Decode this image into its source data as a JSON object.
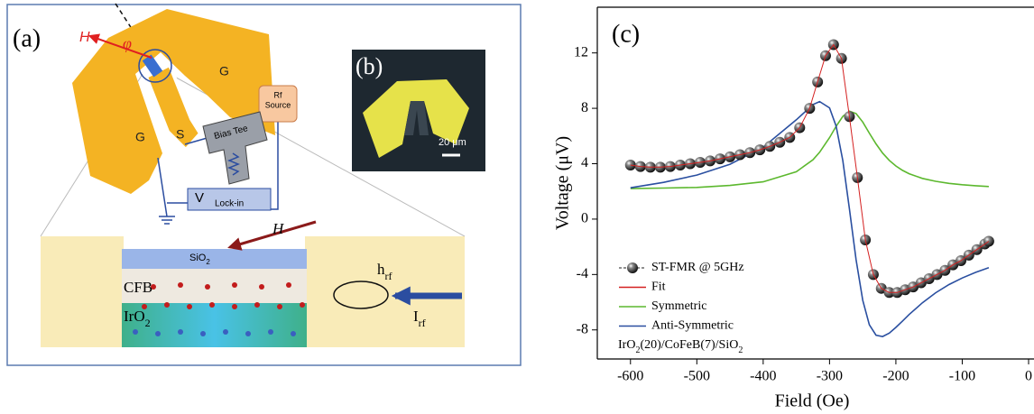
{
  "chart_data": {
    "type": "line",
    "panel_label": "(c)",
    "xlabel": "Field (Oe)",
    "ylabel": "Voltage (μV)",
    "xlim": [
      -650,
      0
    ],
    "ylim": [
      -10.1,
      15.3
    ],
    "xticks": [
      -600,
      -500,
      -400,
      -300,
      -200,
      -100,
      0
    ],
    "yticks": [
      -8,
      -4,
      0,
      4,
      8,
      12
    ],
    "series": [
      {
        "name": "ST-FMR @ 5GHz",
        "color": "#222222",
        "style": "markers",
        "x": [
          -600,
          -585,
          -570,
          -555,
          -540,
          -525,
          -510,
          -495,
          -480,
          -465,
          -450,
          -435,
          -420,
          -405,
          -390,
          -375,
          -360,
          -345,
          -330,
          -318,
          -306,
          -294,
          -282,
          -270,
          -258,
          -246,
          -234,
          -222,
          -210,
          -198,
          -186,
          -174,
          -162,
          -150,
          -138,
          -126,
          -114,
          -102,
          -90,
          -78,
          -66,
          -60
        ],
        "values": [
          3.9,
          3.8,
          3.75,
          3.75,
          3.8,
          3.9,
          4.0,
          4.1,
          4.2,
          4.35,
          4.5,
          4.65,
          4.8,
          5.0,
          5.25,
          5.55,
          5.9,
          6.6,
          8.0,
          9.9,
          11.8,
          12.6,
          11.6,
          7.4,
          3.0,
          -1.5,
          -4.0,
          -5.0,
          -5.3,
          -5.3,
          -5.1,
          -4.9,
          -4.6,
          -4.3,
          -4.0,
          -3.7,
          -3.3,
          -3.0,
          -2.6,
          -2.2,
          -1.8,
          -1.6
        ]
      },
      {
        "name": "Fit",
        "color": "#d42020",
        "style": "line",
        "x": [
          -600,
          -585,
          -570,
          -555,
          -540,
          -525,
          -510,
          -495,
          -480,
          -465,
          -450,
          -435,
          -420,
          -405,
          -390,
          -375,
          -360,
          -345,
          -330,
          -318,
          -306,
          -294,
          -282,
          -270,
          -258,
          -246,
          -234,
          -222,
          -210,
          -198,
          -186,
          -174,
          -162,
          -150,
          -138,
          -126,
          -114,
          -102,
          -90,
          -78,
          -66,
          -60
        ],
        "values": [
          3.9,
          3.8,
          3.75,
          3.75,
          3.8,
          3.9,
          4.0,
          4.1,
          4.2,
          4.35,
          4.5,
          4.65,
          4.8,
          5.0,
          5.25,
          5.55,
          5.9,
          6.6,
          8.0,
          9.9,
          11.8,
          12.6,
          11.6,
          7.4,
          3.0,
          -1.5,
          -4.0,
          -5.0,
          -5.3,
          -5.3,
          -5.1,
          -4.9,
          -4.6,
          -4.3,
          -4.0,
          -3.7,
          -3.3,
          -3.0,
          -2.6,
          -2.2,
          -1.8,
          -1.6
        ]
      },
      {
        "name": "Symmetric",
        "color": "#5cb82e",
        "style": "line",
        "x": [
          -600,
          -550,
          -500,
          -450,
          -400,
          -350,
          -325,
          -315,
          -300,
          -290,
          -280,
          -270,
          -260,
          -250,
          -240,
          -230,
          -220,
          -210,
          -200,
          -190,
          -180,
          -160,
          -140,
          -120,
          -100,
          -80,
          -60
        ],
        "values": [
          2.2,
          2.24,
          2.29,
          2.43,
          2.69,
          3.42,
          4.29,
          4.83,
          5.88,
          6.7,
          7.42,
          7.79,
          7.62,
          7.01,
          6.21,
          5.43,
          4.77,
          4.24,
          3.84,
          3.52,
          3.28,
          2.94,
          2.73,
          2.58,
          2.48,
          2.41,
          2.35
        ]
      },
      {
        "name": "Anti-Symmetric",
        "color": "#2a4fa0",
        "style": "line",
        "x": [
          -600,
          -550,
          -500,
          -450,
          -400,
          -350,
          -325,
          -315,
          -300,
          -290,
          -280,
          -270,
          -260,
          -250,
          -240,
          -230,
          -220,
          -210,
          -200,
          -190,
          -180,
          -160,
          -140,
          -120,
          -100,
          -80,
          -60
        ],
        "values": [
          2.26,
          2.65,
          3.18,
          3.96,
          5.19,
          7.17,
          8.27,
          8.49,
          8.03,
          6.71,
          4.23,
          0.75,
          -2.93,
          -5.86,
          -7.63,
          -8.38,
          -8.48,
          -8.23,
          -7.82,
          -7.36,
          -6.89,
          -6.04,
          -5.32,
          -4.73,
          -4.25,
          -3.85,
          -3.51
        ]
      }
    ],
    "annotation": [
      "IrO",
      "2",
      "(20)/CoFeB(7)/SiO",
      "2"
    ]
  },
  "panel_a": {
    "label": "(a)",
    "field": "H",
    "angle": "φ",
    "ground_left": "G",
    "ground_right": "G",
    "signal": "S",
    "rf_source": [
      "Rf",
      "Source"
    ],
    "bias_tee": "Bias Tee",
    "voltmeter": "V",
    "lock_in": "Lock-in",
    "field_3d": "H",
    "sio2": [
      "SiO",
      "2"
    ],
    "cfb": "CFB",
    "iro2": [
      "IrO",
      "2"
    ],
    "h_rf": [
      "h",
      "rf"
    ],
    "i_rf": [
      "I",
      "rf"
    ]
  },
  "panel_b": {
    "label": "(b)",
    "scale_bar": "20 μm"
  }
}
